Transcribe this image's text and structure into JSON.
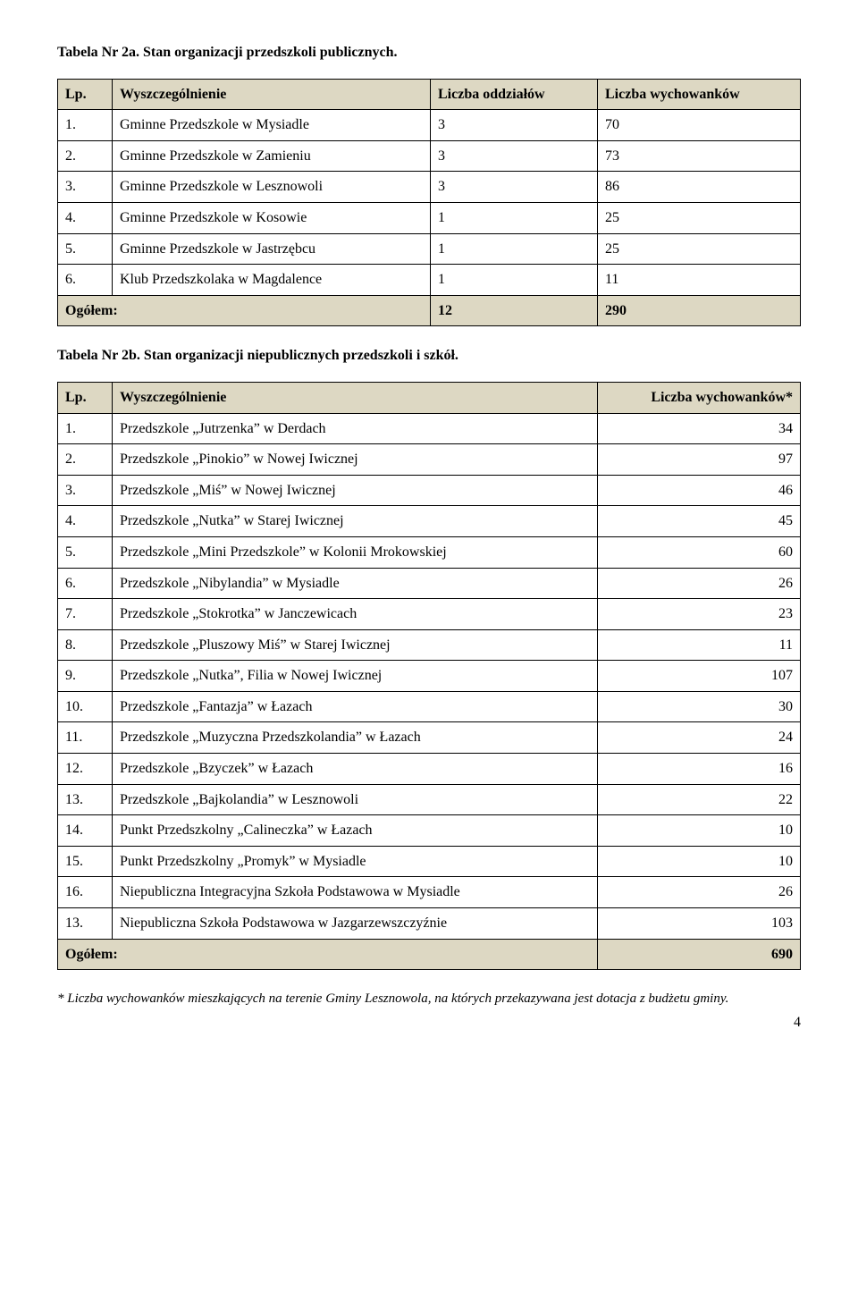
{
  "title1": "Tabela Nr 2a. Stan organizacji przedszkoli publicznych.",
  "table1": {
    "headers": {
      "lp": "Lp.",
      "name": "Wyszczególnienie",
      "oddz": "Liczba oddziałów",
      "wych": "Liczba wychowanków"
    },
    "rows": [
      {
        "lp": "1.",
        "name": "Gminne Przedszkole w Mysiadle",
        "oddz": "3",
        "wych": "70"
      },
      {
        "lp": "2.",
        "name": "Gminne Przedszkole w Zamieniu",
        "oddz": "3",
        "wych": "73"
      },
      {
        "lp": "3.",
        "name": "Gminne Przedszkole w Lesznowoli",
        "oddz": "3",
        "wych": "86"
      },
      {
        "lp": "4.",
        "name": "Gminne Przedszkole w Kosowie",
        "oddz": "1",
        "wych": "25"
      },
      {
        "lp": "5.",
        "name": "Gminne Przedszkole w Jastrzębcu",
        "oddz": "1",
        "wych": "25"
      },
      {
        "lp": "6.",
        "name": "Klub Przedszkolaka w Magdalence",
        "oddz": "1",
        "wych": "11"
      }
    ],
    "total": {
      "label": "Ogółem:",
      "oddz": "12",
      "wych": "290"
    }
  },
  "title2": "Tabela Nr 2b. Stan organizacji niepublicznych przedszkoli i szkół.",
  "table2": {
    "headers": {
      "lp": "Lp.",
      "name": "Wyszczególnienie",
      "wych": "Liczba wychowanków*"
    },
    "rows": [
      {
        "lp": "1.",
        "name": "Przedszkole „Jutrzenka” w Derdach",
        "wych": "34"
      },
      {
        "lp": "2.",
        "name": "Przedszkole „Pinokio” w Nowej Iwicznej",
        "wych": "97"
      },
      {
        "lp": "3.",
        "name": "Przedszkole „Miś” w Nowej Iwicznej",
        "wych": "46"
      },
      {
        "lp": "4.",
        "name": "Przedszkole „Nutka” w Starej Iwicznej",
        "wych": "45"
      },
      {
        "lp": "5.",
        "name": "Przedszkole „Mini Przedszkole” w Kolonii Mrokowskiej",
        "wych": "60"
      },
      {
        "lp": "6.",
        "name": "Przedszkole „Nibylandia” w Mysiadle",
        "wych": "26"
      },
      {
        "lp": "7.",
        "name": "Przedszkole „Stokrotka” w Janczewicach",
        "wych": "23"
      },
      {
        "lp": "8.",
        "name": "Przedszkole „Pluszowy Miś” w Starej Iwicznej",
        "wych": "11"
      },
      {
        "lp": "9.",
        "name": "Przedszkole „Nutka”, Filia w Nowej Iwicznej",
        "wych": "107"
      },
      {
        "lp": "10.",
        "name": "Przedszkole „Fantazja” w Łazach",
        "wych": "30"
      },
      {
        "lp": "11.",
        "name": "Przedszkole „Muzyczna Przedszkolandia” w Łazach",
        "wych": "24"
      },
      {
        "lp": "12.",
        "name": "Przedszkole „Bzyczek” w Łazach",
        "wych": "16"
      },
      {
        "lp": "13.",
        "name": "Przedszkole „Bajkolandia” w Lesznowoli",
        "wych": "22"
      },
      {
        "lp": "14.",
        "name": "Punkt Przedszkolny „Calineczka” w Łazach",
        "wych": "10"
      },
      {
        "lp": "15.",
        "name": "Punkt Przedszkolny „Promyk” w Mysiadle",
        "wych": "10"
      },
      {
        "lp": "16.",
        "name": "Niepubliczna Integracyjna Szkoła Podstawowa w Mysiadle",
        "wych": "26"
      },
      {
        "lp": "13.",
        "name": "Niepubliczna Szkoła Podstawowa w Jazgarzewszczyźnie",
        "wych": "103"
      }
    ],
    "total": {
      "label": "Ogółem:",
      "wych": "690"
    }
  },
  "footnote": "* Liczba wychowanków mieszkających na terenie Gminy Lesznowola, na których przekazywana jest dotacja z budżetu gminy.",
  "pagenum": "4",
  "colors": {
    "header_bg": "#ddd8c3",
    "border": "#000000",
    "text": "#000000",
    "page_bg": "#ffffff"
  },
  "typography": {
    "font_family": "Times New Roman",
    "body_size_pt": 12,
    "title_weight": "bold",
    "header_weight": "bold"
  }
}
